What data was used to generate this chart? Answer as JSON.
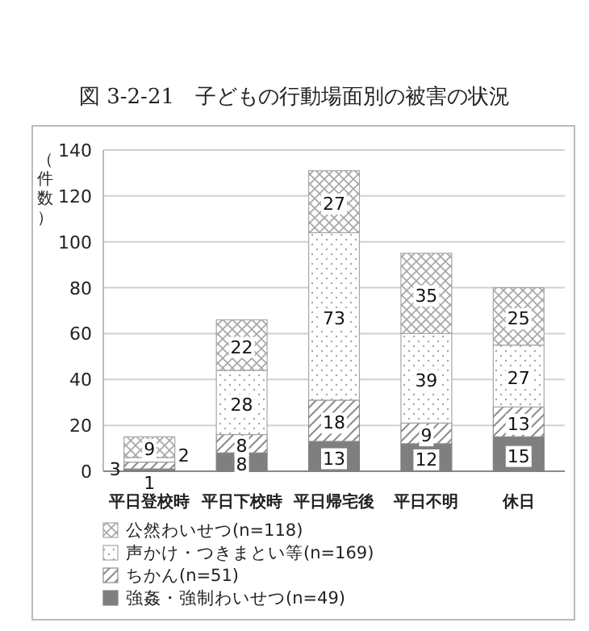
{
  "chart_data": {
    "type": "bar",
    "stacked": true,
    "title": "図 3-2-21　子どもの行動場面別の被害の状況",
    "ylabel": "（件数）",
    "categories": [
      "平日登校時",
      "平日下校時",
      "平日帰宅後",
      "平日不明",
      "休日"
    ],
    "series": [
      {
        "name": "強姦・強制わいせつ(n=49)",
        "color": "#7f7f7f",
        "values": [
          1,
          8,
          13,
          12,
          15
        ]
      },
      {
        "name": "ちかん(n=51)",
        "color": "#8c8c8c",
        "values": [
          3,
          8,
          18,
          9,
          13
        ]
      },
      {
        "name": "声かけ・つきまとい等(n=169)",
        "color": "#a6a6a6",
        "values": [
          2,
          28,
          73,
          39,
          27
        ]
      },
      {
        "name": "公然わいせつ(n=118)",
        "color": "#a6a6a6",
        "values": [
          9,
          22,
          27,
          35,
          25
        ]
      }
    ],
    "ylim": [
      0,
      140
    ],
    "yticks": [
      0,
      20,
      40,
      60,
      80,
      100,
      120,
      140
    ],
    "grid": "y",
    "legend": "bottom",
    "data_labels": true
  }
}
